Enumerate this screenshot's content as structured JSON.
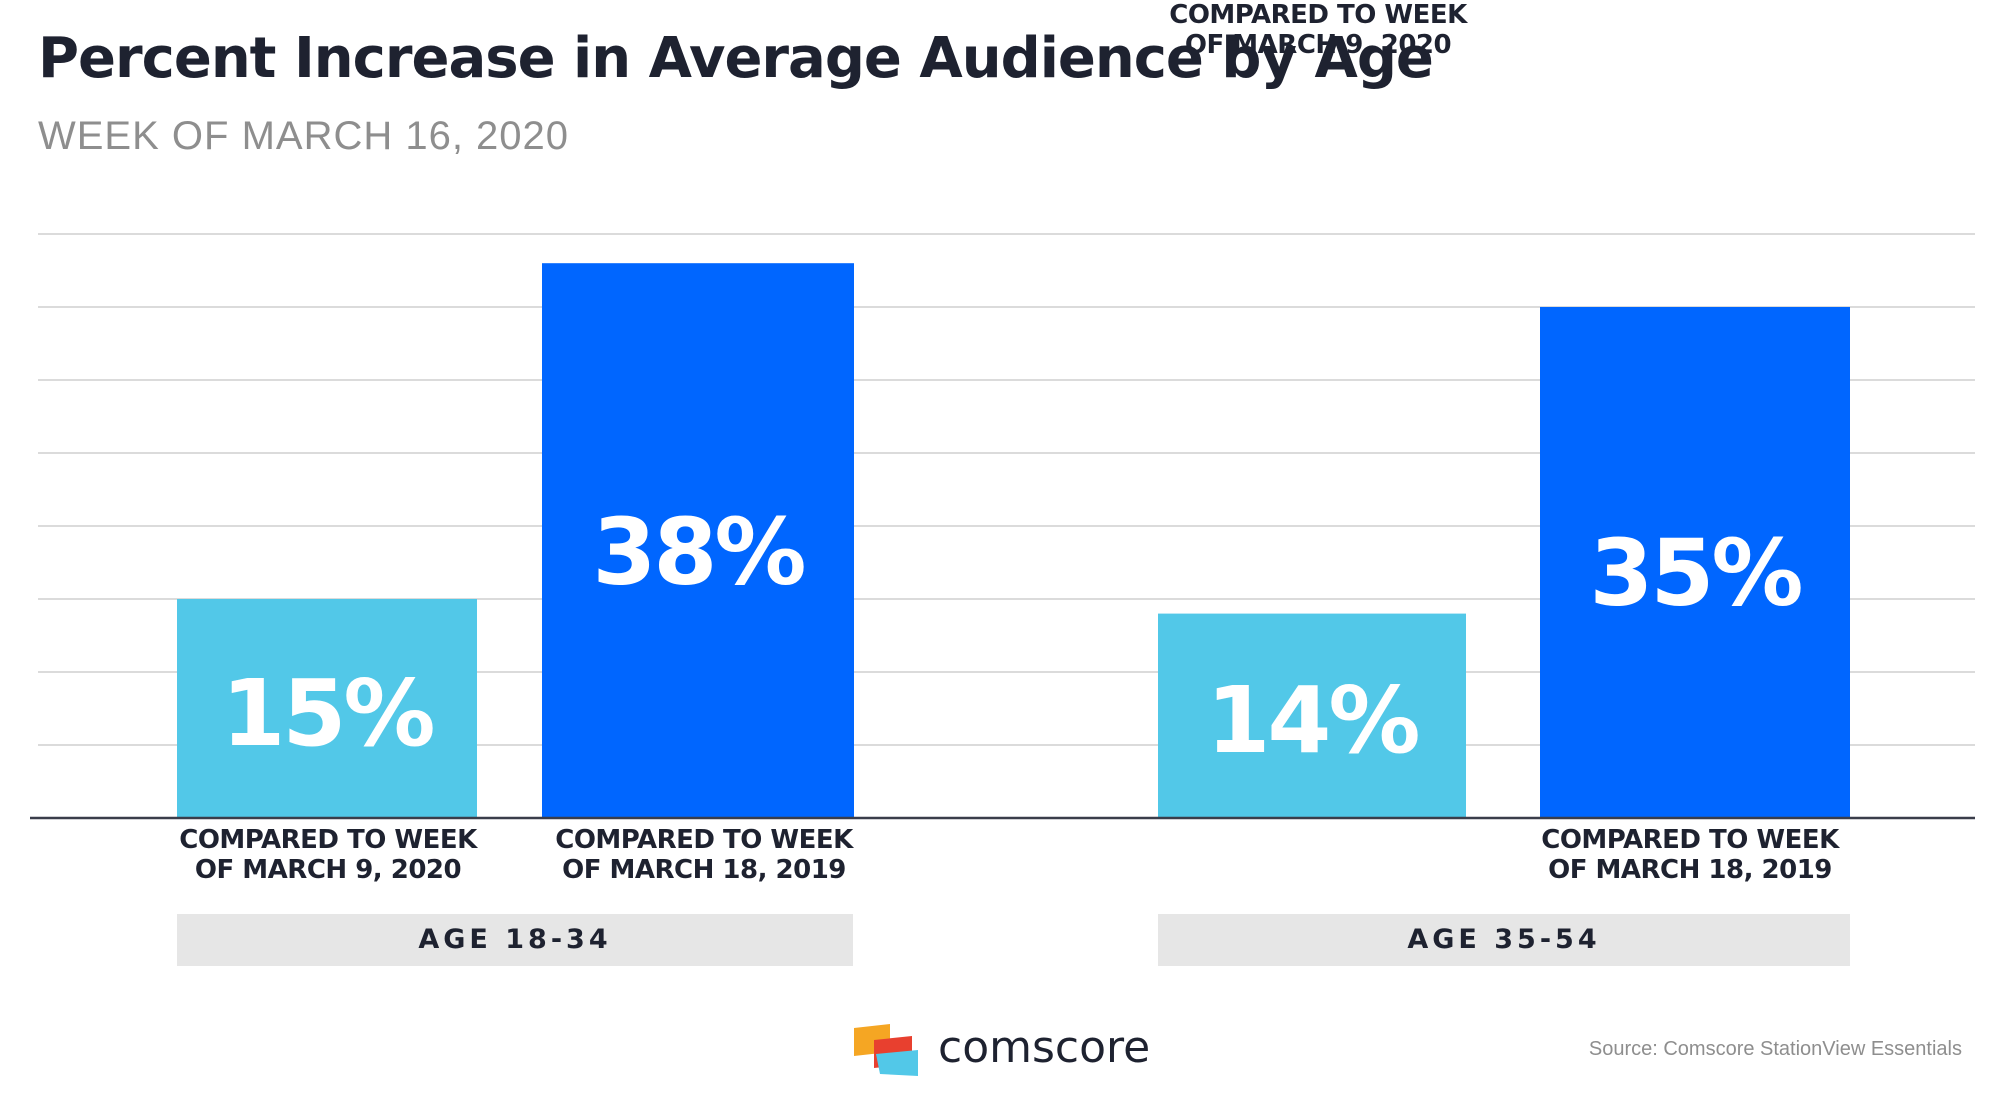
{
  "header": {
    "title": "Percent Increase in Average Audience by Age",
    "subtitle": "WEEK OF MARCH 16, 2020"
  },
  "chart_data": {
    "type": "bar",
    "title": "Percent Increase in Average Audience by Age",
    "subtitle": "WEEK OF MARCH 16, 2020",
    "ylim": [
      0,
      40
    ],
    "grid": true,
    "colors": {
      "light": "#52c8e8",
      "dark": "#0066ff",
      "grid": "#cfcfcf",
      "axis": "#3a3d4a"
    },
    "groups": [
      {
        "label": "AGE 18-34",
        "bars": [
          {
            "category_line1": "COMPARED TO WEEK",
            "category_line2": "OF MARCH 9, 2020",
            "value": 15,
            "label": "15%",
            "color": "#52c8e8"
          },
          {
            "category_line1": "COMPARED TO WEEK",
            "category_line2": "OF MARCH 18, 2019",
            "value": 38,
            "label": "38%",
            "color": "#0066ff"
          }
        ]
      },
      {
        "label": "AGE 35-54",
        "bars": [
          {
            "category_line1": "COMPARED TO WEEK",
            "category_line2": "OF MARCH 9, 2020",
            "value": 14,
            "label": "14%",
            "color": "#52c8e8"
          },
          {
            "category_line1": "COMPARED TO WEEK",
            "category_line2": "OF MARCH 18, 2019",
            "value": 35,
            "label": "35%",
            "color": "#0066ff"
          }
        ]
      }
    ]
  },
  "footer": {
    "brand": "comscore",
    "source": "Source: Comscore StationView Essentials",
    "logo_icon": "comscore-logo-icon"
  }
}
